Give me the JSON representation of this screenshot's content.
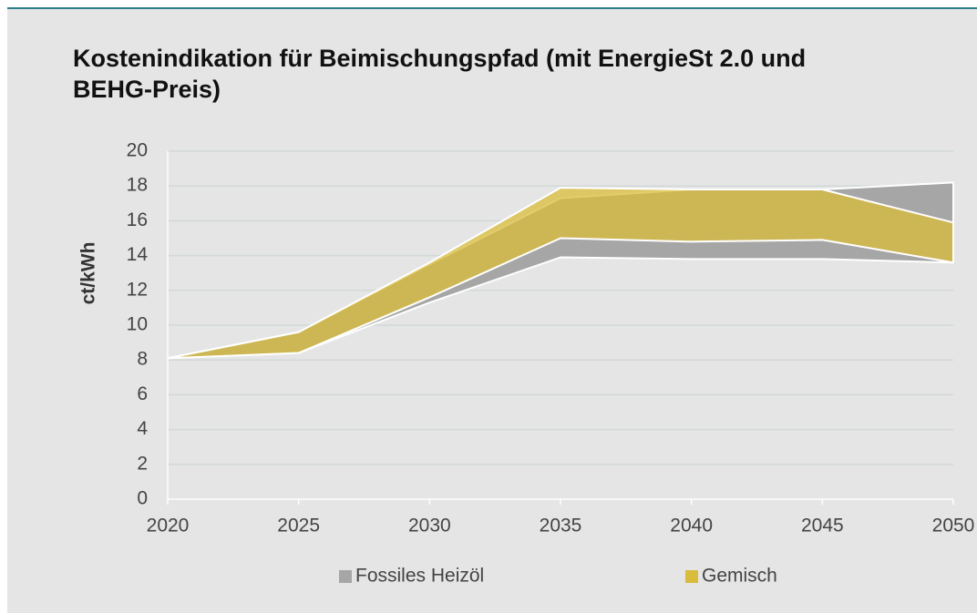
{
  "chart_data": {
    "type": "range_area",
    "title": "Kostenindikation für Beimischungspfad (mit EnergieSt 2.0 und BEHG-Preis)",
    "ylabel": "ct/kWh",
    "x": [
      2020,
      2025,
      2030,
      2035,
      2040,
      2045,
      2050
    ],
    "xlim": [
      2020,
      2050
    ],
    "xticks": [
      2020,
      2025,
      2030,
      2035,
      2040,
      2045,
      2050
    ],
    "ylim": [
      0,
      20
    ],
    "yticks": [
      0,
      2,
      4,
      6,
      8,
      10,
      12,
      14,
      16,
      18,
      20
    ],
    "grid": true,
    "series": [
      {
        "name": "Fossiles Heizöl",
        "color": "#a6a6a6",
        "low": [
          8.1,
          8.4,
          11.3,
          13.9,
          13.8,
          13.8,
          13.6
        ],
        "high": [
          8.1,
          9.6,
          13.5,
          17.3,
          17.8,
          17.8,
          18.2
        ]
      },
      {
        "name": "Gemisch",
        "color": "#d9bc3a",
        "low": [
          8.1,
          8.4,
          11.6,
          15.0,
          14.8,
          14.9,
          13.6
        ],
        "high": [
          8.1,
          9.6,
          13.6,
          17.9,
          17.8,
          17.8,
          15.9
        ]
      }
    ]
  }
}
